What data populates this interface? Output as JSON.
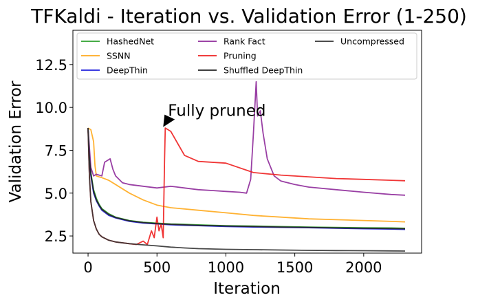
{
  "chart_data": {
    "type": "line",
    "title": "TFKaldi - Iteration vs. Validation Error (1-250)",
    "xlabel": "Iteration",
    "ylabel": "Validation Error",
    "xlim": [
      -110,
      2420
    ],
    "ylim": [
      1.5,
      14.5
    ],
    "xticks": [
      0,
      500,
      1000,
      1500,
      2000
    ],
    "xtick_labels": [
      "0",
      "500",
      "1000",
      "1500",
      "2000"
    ],
    "yticks": [
      2.5,
      5.0,
      7.5,
      10.0,
      12.5
    ],
    "ytick_labels": [
      "2.5",
      "5.0",
      "7.5",
      "10.0",
      "12.5"
    ],
    "grid": false,
    "legend_position": "top",
    "legend_columns": 3,
    "annotation": {
      "text": "Fully pruned",
      "x": 560,
      "y": 8.9,
      "text_x": 580,
      "text_y": 9.5
    },
    "series": [
      {
        "name": "HashedNet",
        "color": "#2ca02c",
        "x": [
          0,
          10,
          20,
          40,
          60,
          80,
          100,
          150,
          200,
          300,
          400,
          500,
          600,
          700,
          800,
          1000,
          1200,
          1400,
          1600,
          1800,
          2000,
          2200,
          2300
        ],
        "y": [
          8.8,
          7.2,
          6.2,
          5.2,
          4.7,
          4.35,
          4.1,
          3.8,
          3.6,
          3.4,
          3.3,
          3.25,
          3.2,
          3.18,
          3.15,
          3.1,
          3.08,
          3.05,
          3.02,
          3.0,
          2.98,
          2.97,
          2.95
        ]
      },
      {
        "name": "SSNN",
        "color": "#ffaa1d",
        "x": [
          0,
          20,
          40,
          50,
          60,
          80,
          100,
          150,
          200,
          300,
          400,
          500,
          600,
          800,
          1000,
          1200,
          1400,
          1600,
          1800,
          2000,
          2200,
          2300
        ],
        "y": [
          8.8,
          8.7,
          8.0,
          6.6,
          6.0,
          5.95,
          5.9,
          5.75,
          5.5,
          5.0,
          4.6,
          4.3,
          4.15,
          4.0,
          3.85,
          3.7,
          3.6,
          3.5,
          3.45,
          3.4,
          3.35,
          3.32
        ]
      },
      {
        "name": "DeepThin",
        "color": "#1f1fdd",
        "x": [
          0,
          10,
          20,
          40,
          60,
          80,
          100,
          150,
          200,
          300,
          400,
          500,
          600,
          700,
          800,
          1000,
          1200,
          1400,
          1600,
          1800,
          2000,
          2200,
          2300
        ],
        "y": [
          8.8,
          7.0,
          6.0,
          5.0,
          4.55,
          4.25,
          4.0,
          3.7,
          3.55,
          3.35,
          3.25,
          3.2,
          3.15,
          3.12,
          3.1,
          3.05,
          3.02,
          3.0,
          2.98,
          2.95,
          2.92,
          2.9,
          2.88
        ]
      },
      {
        "name": "Rank Fact",
        "color": "#8e2a9a",
        "x": [
          0,
          20,
          40,
          60,
          100,
          120,
          140,
          160,
          180,
          200,
          250,
          300,
          400,
          500,
          600,
          700,
          800,
          900,
          1000,
          1100,
          1150,
          1180,
          1200,
          1220,
          1230,
          1250,
          1270,
          1300,
          1350,
          1400,
          1500,
          1600,
          1800,
          2000,
          2200,
          2300
        ],
        "y": [
          8.8,
          6.5,
          6.0,
          6.1,
          6.0,
          6.8,
          6.9,
          7.0,
          6.4,
          6.0,
          5.6,
          5.5,
          5.4,
          5.3,
          5.4,
          5.3,
          5.2,
          5.15,
          5.1,
          5.05,
          5.0,
          5.8,
          8.5,
          11.5,
          9.5,
          9.8,
          8.5,
          7.0,
          6.0,
          5.7,
          5.5,
          5.35,
          5.2,
          5.05,
          4.92,
          4.88
        ]
      },
      {
        "name": "Pruning",
        "color": "#ee2020",
        "x": [
          0,
          10,
          20,
          40,
          60,
          80,
          100,
          150,
          200,
          300,
          350,
          400,
          430,
          460,
          480,
          500,
          515,
          530,
          545,
          555,
          560,
          600,
          650,
          700,
          800,
          1000,
          1200,
          1400,
          1600,
          1800,
          2000,
          2200,
          2300
        ],
        "y": [
          8.8,
          6.0,
          4.5,
          3.4,
          2.9,
          2.6,
          2.45,
          2.25,
          2.15,
          2.05,
          2.0,
          2.2,
          2.0,
          2.8,
          2.4,
          3.6,
          2.8,
          3.2,
          2.4,
          7.0,
          8.8,
          8.6,
          7.9,
          7.2,
          6.85,
          6.75,
          6.2,
          6.05,
          5.95,
          5.85,
          5.8,
          5.75,
          5.72
        ]
      },
      {
        "name": "Shuffled DeepThin",
        "color": "#222222",
        "x": [
          0,
          10,
          20,
          40,
          60,
          80,
          100,
          150,
          200,
          300,
          400,
          500,
          600,
          700,
          800,
          1000,
          1200,
          1400,
          1600,
          1800,
          2000,
          2200,
          2300
        ],
        "y": [
          8.8,
          7.1,
          6.1,
          5.1,
          4.6,
          4.3,
          4.05,
          3.75,
          3.58,
          3.38,
          3.28,
          3.22,
          3.18,
          3.15,
          3.12,
          3.08,
          3.05,
          3.02,
          3.0,
          2.97,
          2.95,
          2.93,
          2.92
        ]
      },
      {
        "name": "Uncompressed",
        "color": "#333333",
        "x": [
          0,
          10,
          20,
          40,
          60,
          80,
          100,
          150,
          200,
          300,
          400,
          500,
          600,
          700,
          800,
          1000,
          1200,
          1400,
          1600,
          1800,
          2000,
          2200,
          2300
        ],
        "y": [
          8.8,
          6.0,
          4.5,
          3.4,
          2.9,
          2.6,
          2.45,
          2.25,
          2.15,
          2.05,
          1.98,
          1.92,
          1.85,
          1.8,
          1.76,
          1.72,
          1.7,
          1.68,
          1.66,
          1.65,
          1.64,
          1.63,
          1.62
        ]
      }
    ]
  }
}
